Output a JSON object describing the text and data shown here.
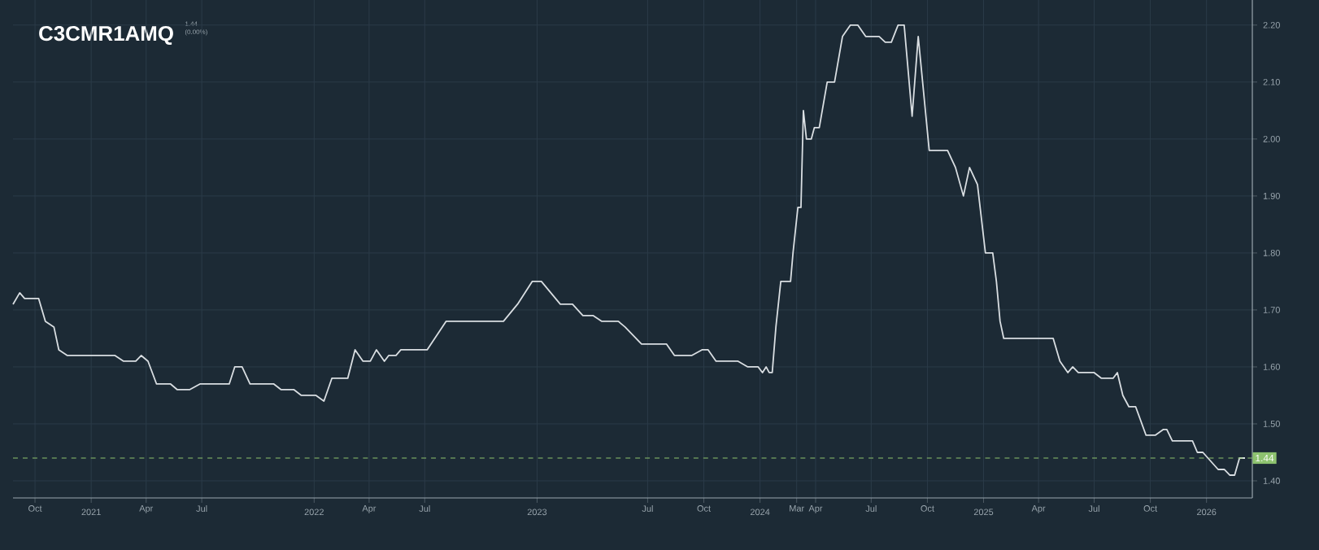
{
  "chart_data": {
    "type": "line",
    "title": "C3CMR1AMQ",
    "subtitle": "1.44 (0.00%)",
    "x": [
      "2020-08-26",
      "2020-09-06",
      "2020-09-14",
      "2020-10-07",
      "2020-10-18",
      "2020-11-01",
      "2020-11-09",
      "2020-11-23",
      "2021-02-09",
      "2021-02-23",
      "2021-03-15",
      "2021-03-24",
      "2021-04-04",
      "2021-04-18",
      "2021-05-11",
      "2021-05-22",
      "2021-06-11",
      "2021-06-28",
      "2021-08-15",
      "2021-08-24",
      "2021-09-05",
      "2021-09-18",
      "2021-10-27",
      "2021-11-08",
      "2021-11-29",
      "2021-12-11",
      "2022-01-04",
      "2022-01-17",
      "2022-01-30",
      "2022-02-25",
      "2022-03-09",
      "2022-03-22",
      "2022-04-03",
      "2022-04-13",
      "2022-04-26",
      "2022-05-03",
      "2022-05-15",
      "2022-05-23",
      "2022-07-05",
      "2022-08-05",
      "2022-11-07",
      "2022-11-30",
      "2022-12-24",
      "2023-01-08",
      "2023-02-08",
      "2023-02-28",
      "2023-03-17",
      "2023-04-03",
      "2023-04-17",
      "2023-05-14",
      "2023-05-25",
      "2023-06-21",
      "2023-08-01",
      "2023-08-14",
      "2023-09-11",
      "2023-09-28",
      "2023-10-08",
      "2023-10-21",
      "2023-11-26",
      "2023-12-12",
      "2023-12-29",
      "2024-01-05",
      "2024-01-11",
      "2024-01-16",
      "2024-01-21",
      "2024-01-27",
      "2024-02-04",
      "2024-02-20",
      "2024-02-24",
      "2024-03-03",
      "2024-03-08",
      "2024-03-12",
      "2024-03-17",
      "2024-03-25",
      "2024-03-30",
      "2024-04-07",
      "2024-04-20",
      "2024-05-02",
      "2024-05-15",
      "2024-05-28",
      "2024-06-09",
      "2024-06-22",
      "2024-07-14",
      "2024-07-24",
      "2024-08-03",
      "2024-08-14",
      "2024-08-24",
      "2024-09-06",
      "2024-09-16",
      "2024-10-04",
      "2024-11-03",
      "2024-11-16",
      "2024-11-29",
      "2024-12-09",
      "2024-12-22",
      "2025-01-04",
      "2025-01-16",
      "2025-01-22",
      "2025-01-28",
      "2025-02-03",
      "2025-04-25",
      "2025-05-06",
      "2025-05-19",
      "2025-05-27",
      "2025-06-05",
      "2025-07-01",
      "2025-07-13",
      "2025-08-01",
      "2025-08-08",
      "2025-08-17",
      "2025-08-27",
      "2025-09-07",
      "2025-09-24",
      "2025-10-09",
      "2025-10-22",
      "2025-10-28",
      "2025-11-06",
      "2025-12-09",
      "2025-12-17",
      "2025-12-26",
      "2026-01-20",
      "2026-01-30",
      "2026-02-08",
      "2026-02-16",
      "2026-02-24",
      "2026-03-05"
    ],
    "series": [
      {
        "color": "#d9dee2",
        "values": [
          1.71,
          1.73,
          1.72,
          1.72,
          1.68,
          1.67,
          1.63,
          1.62,
          1.62,
          1.61,
          1.61,
          1.62,
          1.61,
          1.57,
          1.57,
          1.56,
          1.56,
          1.57,
          1.57,
          1.6,
          1.6,
          1.57,
          1.57,
          1.56,
          1.56,
          1.55,
          1.55,
          1.54,
          1.58,
          1.58,
          1.63,
          1.61,
          1.61,
          1.63,
          1.61,
          1.62,
          1.62,
          1.63,
          1.63,
          1.68,
          1.68,
          1.71,
          1.75,
          1.75,
          1.71,
          1.71,
          1.69,
          1.69,
          1.68,
          1.68,
          1.67,
          1.64,
          1.64,
          1.62,
          1.62,
          1.63,
          1.63,
          1.61,
          1.61,
          1.6,
          1.6,
          1.59,
          1.6,
          1.59,
          1.59,
          1.67,
          1.75,
          1.75,
          1.8,
          1.88,
          1.88,
          2.05,
          2.0,
          2.0,
          2.02,
          2.02,
          2.1,
          2.1,
          2.18,
          2.2,
          2.2,
          2.18,
          2.18,
          2.17,
          2.17,
          2.2,
          2.2,
          2.04,
          2.18,
          1.98,
          1.98,
          1.95,
          1.9,
          1.95,
          1.92,
          1.8,
          1.8,
          1.75,
          1.68,
          1.65,
          1.65,
          1.61,
          1.59,
          1.6,
          1.59,
          1.59,
          1.58,
          1.58,
          1.59,
          1.55,
          1.53,
          1.53,
          1.48,
          1.48,
          1.49,
          1.49,
          1.47,
          1.47,
          1.45,
          1.45,
          1.42,
          1.42,
          1.41,
          1.41,
          1.44,
          1.44
        ]
      }
    ],
    "xlim": [
      "2020-08-26",
      "2026-03-17"
    ],
    "xticks": [
      {
        "value": "2020-10-01",
        "label": "Oct"
      },
      {
        "value": "2021-01-01",
        "label": "2021"
      },
      {
        "value": "2021-04-01",
        "label": "Apr"
      },
      {
        "value": "2021-07-01",
        "label": "Jul"
      },
      {
        "value": "2022-01-01",
        "label": "2022"
      },
      {
        "value": "2022-04-01",
        "label": "Apr"
      },
      {
        "value": "2022-07-01",
        "label": "Jul"
      },
      {
        "value": "2023-01-01",
        "label": "2023"
      },
      {
        "value": "2023-07-01",
        "label": "Jul"
      },
      {
        "value": "2023-10-01",
        "label": "Oct"
      },
      {
        "value": "2024-01-01",
        "label": "2024"
      },
      {
        "value": "2024-03-01",
        "label": "Mar"
      },
      {
        "value": "2024-04-01",
        "label": "Apr"
      },
      {
        "value": "2024-07-01",
        "label": "Jul"
      },
      {
        "value": "2024-10-01",
        "label": "Oct"
      },
      {
        "value": "2025-01-01",
        "label": "2025"
      },
      {
        "value": "2025-04-01",
        "label": "Apr"
      },
      {
        "value": "2025-07-01",
        "label": "Jul"
      },
      {
        "value": "2025-10-01",
        "label": "Oct"
      },
      {
        "value": "2026-01-01",
        "label": "2026"
      }
    ],
    "ylim": [
      1.37,
      2.244
    ],
    "yticks": [
      {
        "value": 1.4,
        "label": "1.40"
      },
      {
        "value": 1.5,
        "label": "1.50"
      },
      {
        "value": 1.6,
        "label": "1.60"
      },
      {
        "value": 1.7,
        "label": "1.70"
      },
      {
        "value": 1.8,
        "label": "1.80"
      },
      {
        "value": 1.9,
        "label": "1.90"
      },
      {
        "value": 2.0,
        "label": "2.00"
      },
      {
        "value": 2.1,
        "label": "2.10"
      },
      {
        "value": 2.2,
        "label": "2.20"
      }
    ],
    "grid": true,
    "marker": "none",
    "line_style": "solid",
    "ref_lines": [
      {
        "axis": "y",
        "value": 1.44,
        "label": "1.44",
        "color": "#8dc26f",
        "line_style": "dashed"
      }
    ]
  }
}
